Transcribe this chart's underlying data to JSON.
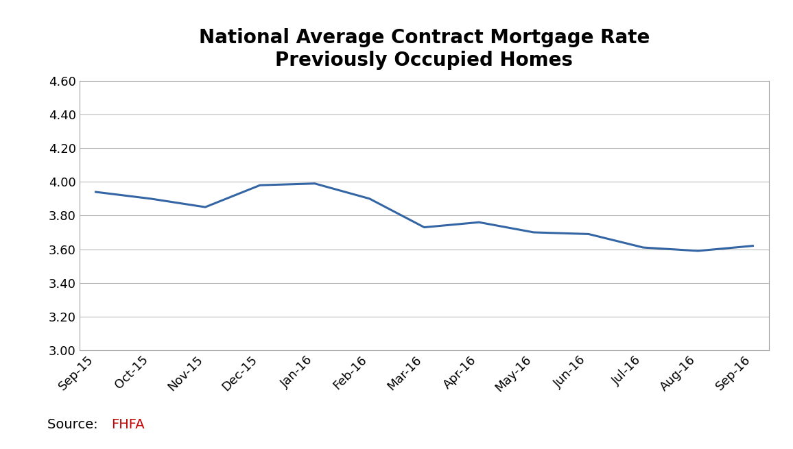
{
  "title_line1": "National Average Contract Mortgage Rate",
  "title_line2": "Previously Occupied Homes",
  "categories": [
    "Sep-15",
    "Oct-15",
    "Nov-15",
    "Dec-15",
    "Jan-16",
    "Feb-16",
    "Mar-16",
    "Apr-16",
    "May-16",
    "Jun-16",
    "Jul-16",
    "Aug-16",
    "Sep-16"
  ],
  "values": [
    3.94,
    3.9,
    3.85,
    3.98,
    3.99,
    3.9,
    3.73,
    3.76,
    3.7,
    3.69,
    3.61,
    3.59,
    3.62
  ],
  "line_color": "#3465A4",
  "line_width": 2.2,
  "ylim_min": 3.0,
  "ylim_max": 4.6,
  "ytick_step": 0.2,
  "background_color": "#ffffff",
  "plot_bg_color": "#ffffff",
  "grid_color": "#b8b8b8",
  "source_word_color": "#000000",
  "source_fhfa_color": "#c00000",
  "title_fontsize": 20,
  "tick_fontsize": 13,
  "source_fontsize": 14,
  "border_color": "#a0a0a0"
}
